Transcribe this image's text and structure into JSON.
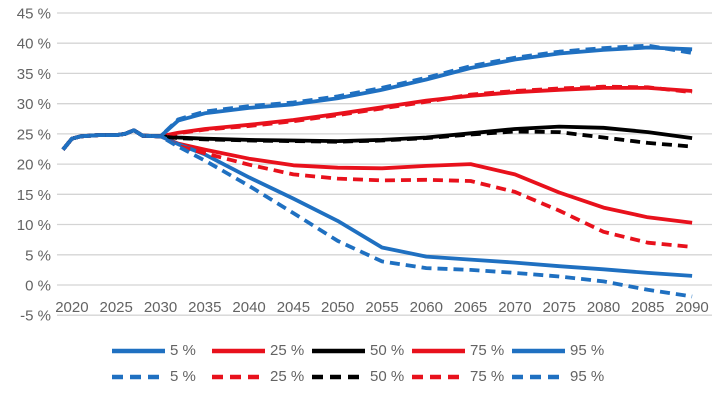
{
  "colors": {
    "blue": "#1F70C1",
    "red": "#E8111C",
    "black": "#000000",
    "axis_text": "#636363",
    "gridline": "#D4D4D4",
    "background": "#FFFFFF"
  },
  "chart_data": {
    "type": "line",
    "title": "",
    "xlabel": "",
    "ylabel": "",
    "grid": true,
    "legend_position": "bottom",
    "x_axis": {
      "tick_labels": [
        "2020",
        "2025",
        "2030",
        "2035",
        "2040",
        "2045",
        "2050",
        "2055",
        "2060",
        "2065",
        "2070",
        "2075",
        "2080",
        "2085",
        "2090"
      ],
      "tick_years": [
        2020,
        2025,
        2030,
        2035,
        2040,
        2045,
        2050,
        2055,
        2060,
        2065,
        2070,
        2075,
        2080,
        2085,
        2090
      ],
      "range": [
        2019,
        2090
      ]
    },
    "y_axis": {
      "tick_labels": [
        "45 %",
        "40 %",
        "35 %",
        "30 %",
        "25 %",
        "20 %",
        "15 %",
        "10 %",
        "5 %",
        "0 %",
        "-5 %"
      ],
      "tick_values": [
        45,
        40,
        35,
        30,
        25,
        20,
        15,
        10,
        5,
        0,
        -5
      ],
      "range": [
        -5,
        45
      ],
      "unit": "%"
    },
    "x": [
      2019,
      2020,
      2021,
      2023,
      2025,
      2026,
      2027,
      2028,
      2030,
      2032,
      2035,
      2040,
      2045,
      2050,
      2055,
      2060,
      2065,
      2070,
      2075,
      2080,
      2085,
      2090
    ],
    "series": [
      {
        "name": "75-percentile-solid",
        "label": "75 %",
        "color": "red",
        "style": "solid",
        "values": [
          22.4,
          24.2,
          24.6,
          24.8,
          24.8,
          25.0,
          25.6,
          24.7,
          24.6,
          25.2,
          25.8,
          26.5,
          27.3,
          28.3,
          29.4,
          30.5,
          31.3,
          31.9,
          32.3,
          32.6,
          32.6,
          32.1
        ]
      },
      {
        "name": "25-percentile-solid",
        "label": "25 %",
        "color": "red",
        "style": "solid",
        "values": [
          22.4,
          24.2,
          24.6,
          24.8,
          24.8,
          25.0,
          25.6,
          24.7,
          24.6,
          23.4,
          22.4,
          20.9,
          19.8,
          19.4,
          19.3,
          19.7,
          20.0,
          18.3,
          15.3,
          12.8,
          11.2,
          10.3
        ]
      },
      {
        "name": "50-percentile-solid",
        "label": "50 %",
        "color": "black",
        "style": "solid",
        "values": [
          22.4,
          24.2,
          24.6,
          24.8,
          24.8,
          25.0,
          25.6,
          24.7,
          24.6,
          24.4,
          24.2,
          24.0,
          23.9,
          23.8,
          24.0,
          24.4,
          25.1,
          25.8,
          26.2,
          26.0,
          25.3,
          24.3
        ]
      },
      {
        "name": "95-percentile-solid",
        "label": "95 %",
        "color": "blue",
        "style": "solid",
        "values": [
          22.4,
          24.2,
          24.6,
          24.8,
          24.8,
          25.0,
          25.6,
          24.7,
          24.6,
          27.2,
          28.4,
          29.3,
          29.9,
          30.9,
          32.3,
          34.0,
          35.9,
          37.3,
          38.3,
          38.9,
          39.3,
          39.0
        ]
      },
      {
        "name": "5-percentile-solid",
        "label": "5 %",
        "color": "blue",
        "style": "solid",
        "values": [
          22.4,
          24.2,
          24.6,
          24.8,
          24.8,
          25.0,
          25.6,
          24.7,
          24.6,
          23.3,
          21.6,
          17.8,
          14.3,
          10.6,
          6.2,
          4.7,
          4.2,
          3.7,
          3.1,
          2.6,
          2.0,
          1.5
        ]
      },
      {
        "name": "75-percentile-dashed",
        "label": "75 %",
        "color": "red",
        "style": "dashed",
        "values": [
          22.4,
          24.2,
          24.6,
          24.8,
          24.8,
          25.0,
          25.6,
          24.7,
          24.6,
          25.1,
          25.7,
          26.3,
          27.1,
          28.1,
          29.2,
          30.3,
          31.5,
          32.1,
          32.5,
          32.8,
          32.7,
          31.9
        ]
      },
      {
        "name": "25-percentile-dashed",
        "label": "25 %",
        "color": "red",
        "style": "dashed",
        "values": [
          22.4,
          24.2,
          24.6,
          24.8,
          24.8,
          25.0,
          25.6,
          24.7,
          24.6,
          23.0,
          21.8,
          19.9,
          18.3,
          17.6,
          17.3,
          17.4,
          17.2,
          15.4,
          12.3,
          8.8,
          7.0,
          6.3
        ]
      },
      {
        "name": "50-percentile-dashed",
        "label": "50 %",
        "color": "black",
        "style": "dashed",
        "values": [
          22.4,
          24.2,
          24.6,
          24.8,
          24.8,
          25.0,
          25.6,
          24.7,
          24.6,
          24.3,
          24.1,
          23.9,
          23.8,
          23.7,
          23.9,
          24.3,
          24.9,
          25.4,
          25.3,
          24.4,
          23.5,
          22.9
        ]
      },
      {
        "name": "95-percentile-dashed",
        "label": "95 %",
        "color": "blue",
        "style": "dashed",
        "values": [
          22.4,
          24.2,
          24.6,
          24.8,
          24.8,
          25.0,
          25.6,
          24.7,
          24.6,
          27.4,
          28.7,
          29.6,
          30.2,
          31.2,
          32.6,
          34.3,
          36.2,
          37.6,
          38.6,
          39.2,
          39.6,
          38.4
        ]
      },
      {
        "name": "5-percentile-dashed",
        "label": "5 %",
        "color": "blue",
        "style": "dashed",
        "values": [
          22.4,
          24.2,
          24.6,
          24.8,
          24.8,
          25.0,
          25.6,
          24.7,
          24.6,
          22.9,
          20.6,
          16.4,
          11.9,
          7.3,
          3.9,
          2.8,
          2.5,
          2.0,
          1.4,
          0.6,
          -0.8,
          -1.9
        ]
      }
    ],
    "legend": {
      "rows": [
        {
          "style": "solid",
          "items": [
            {
              "label": "5 %",
              "color": "blue"
            },
            {
              "label": "25 %",
              "color": "red"
            },
            {
              "label": "50 %",
              "color": "black"
            },
            {
              "label": "75 %",
              "color": "red"
            },
            {
              "label": "95 %",
              "color": "blue"
            }
          ]
        },
        {
          "style": "dashed",
          "items": [
            {
              "label": "5 %",
              "color": "blue"
            },
            {
              "label": "25 %",
              "color": "red"
            },
            {
              "label": "50 %",
              "color": "black"
            },
            {
              "label": "75 %",
              "color": "red"
            },
            {
              "label": "95 %",
              "color": "blue"
            }
          ]
        }
      ]
    }
  }
}
